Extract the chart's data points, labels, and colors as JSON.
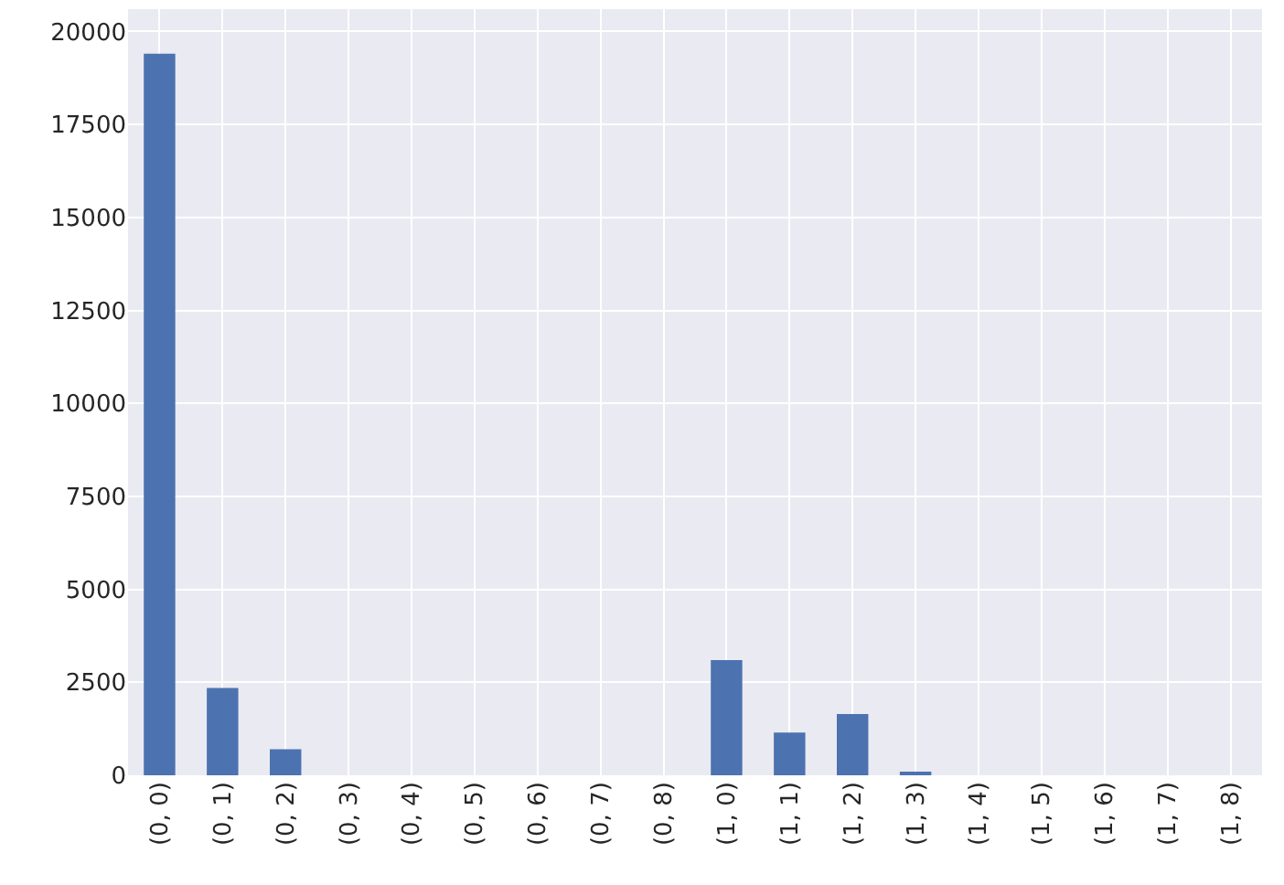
{
  "chart_data": {
    "type": "bar",
    "categories": [
      "(0, 0)",
      "(0, 1)",
      "(0, 2)",
      "(0, 3)",
      "(0, 4)",
      "(0, 5)",
      "(0, 6)",
      "(0, 7)",
      "(0, 8)",
      "(1, 0)",
      "(1, 1)",
      "(1, 2)",
      "(1, 3)",
      "(1, 4)",
      "(1, 5)",
      "(1, 6)",
      "(1, 7)",
      "(1, 8)"
    ],
    "values": [
      19400,
      2350,
      700,
      0,
      0,
      0,
      0,
      0,
      0,
      3100,
      1150,
      1650,
      100,
      0,
      0,
      0,
      0,
      0
    ],
    "color": "#4c72b0",
    "ylim": [
      0,
      20600
    ],
    "yticks": [
      0,
      2500,
      5000,
      7500,
      10000,
      12500,
      15000,
      17500,
      20000
    ],
    "grid": true
  }
}
